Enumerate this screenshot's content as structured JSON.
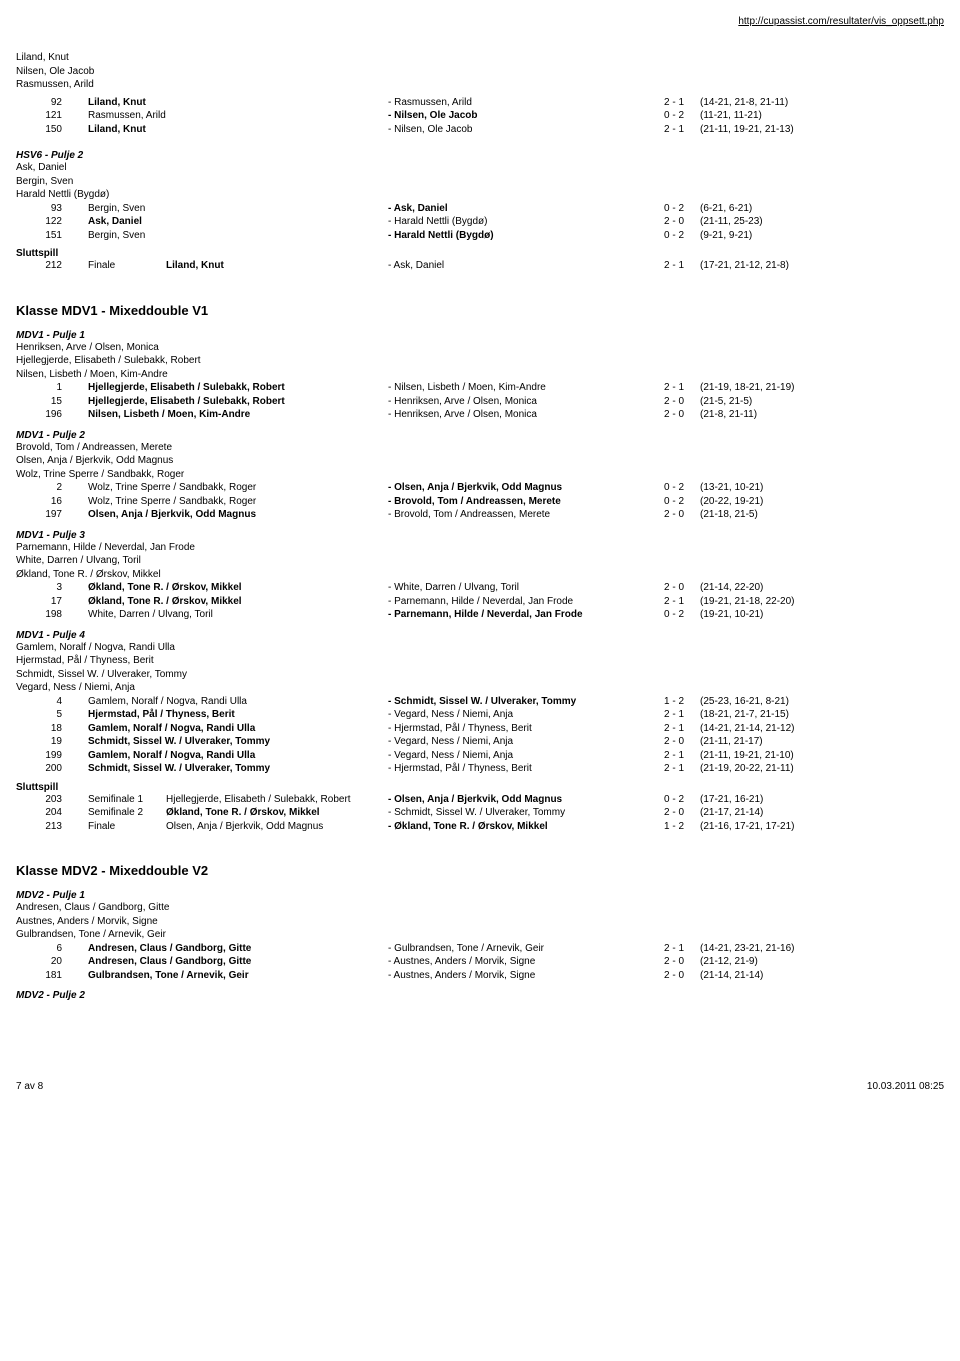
{
  "url": "http://cupassist.com/resultater/vis_oppsett.php",
  "topNames": [
    "Liland, Knut",
    "Nilsen, Ole Jacob",
    "Rasmussen, Arild"
  ],
  "topMatches": [
    {
      "n": "92",
      "left": "Liland, Knut",
      "lb": true,
      "vs": "- Rasmussen, Arild",
      "score": "2 - 1",
      "sets": "(14-21, 21-8, 21-11)"
    },
    {
      "n": "121",
      "left": "Rasmussen, Arild",
      "lb": false,
      "vs": "- Nilsen, Ole Jacob",
      "vb": true,
      "score": "0 - 2",
      "sets": "(11-21, 11-21)"
    },
    {
      "n": "150",
      "left": "Liland, Knut",
      "lb": true,
      "vs": "- Nilsen, Ole Jacob",
      "score": "2 - 1",
      "sets": "(21-11, 19-21, 21-13)"
    }
  ],
  "hsv6": {
    "title": "HSV6 - Pulje 2",
    "players": [
      "Ask, Daniel",
      "Bergin, Sven",
      "Harald Nettli (Bygdø)"
    ],
    "rows": [
      {
        "n": "93",
        "left": "Bergin, Sven",
        "vs": "- Ask, Daniel",
        "vb": true,
        "score": "0 - 2",
        "sets": "(6-21, 6-21)"
      },
      {
        "n": "122",
        "left": "Ask, Daniel",
        "lb": true,
        "vs": "- Harald Nettli (Bygdø)",
        "score": "2 - 0",
        "sets": "(21-11, 25-23)"
      },
      {
        "n": "151",
        "left": "Bergin, Sven",
        "vs": "- Harald Nettli (Bygdø)",
        "vb": true,
        "score": "0 - 2",
        "sets": "(9-21, 9-21)"
      }
    ]
  },
  "slutt1": {
    "title": "Sluttspill",
    "rows": [
      {
        "n": "212",
        "round": "Finale",
        "left": "Liland, Knut",
        "lb": true,
        "vs": "- Ask, Daniel",
        "score": "2 - 1",
        "sets": "(17-21, 21-12, 21-8)"
      }
    ]
  },
  "klasse1": "Klasse MDV1 - Mixeddouble V1",
  "mdv1p1": {
    "title": "MDV1 - Pulje 1",
    "players": [
      "Henriksen, Arve / Olsen, Monica",
      "Hjellegjerde, Elisabeth / Sulebakk, Robert",
      "Nilsen, Lisbeth / Moen, Kim-Andre"
    ],
    "rows": [
      {
        "n": "1",
        "left": "Hjellegjerde, Elisabeth / Sulebakk, Robert",
        "lb": true,
        "vs": "- Nilsen, Lisbeth / Moen, Kim-Andre",
        "score": "2 - 1",
        "sets": "(21-19, 18-21, 21-19)"
      },
      {
        "n": "15",
        "left": "Hjellegjerde, Elisabeth / Sulebakk, Robert",
        "lb": true,
        "vs": "- Henriksen, Arve / Olsen, Monica",
        "score": "2 - 0",
        "sets": "(21-5, 21-5)"
      },
      {
        "n": "196",
        "left": "Nilsen, Lisbeth / Moen, Kim-Andre",
        "lb": true,
        "vs": "- Henriksen, Arve / Olsen, Monica",
        "score": "2 - 0",
        "sets": "(21-8, 21-11)"
      }
    ]
  },
  "mdv1p2": {
    "title": "MDV1 - Pulje 2",
    "players": [
      "Brovold, Tom / Andreassen, Merete",
      "Olsen, Anja / Bjerkvik, Odd Magnus",
      "Wolz, Trine Sperre / Sandbakk, Roger"
    ],
    "rows": [
      {
        "n": "2",
        "left": "Wolz, Trine Sperre / Sandbakk, Roger",
        "vs": "- Olsen, Anja / Bjerkvik, Odd Magnus",
        "vb": true,
        "score": "0 - 2",
        "sets": "(13-21, 10-21)"
      },
      {
        "n": "16",
        "left": "Wolz, Trine Sperre / Sandbakk, Roger",
        "vs": "- Brovold, Tom / Andreassen, Merete",
        "vb": true,
        "score": "0 - 2",
        "sets": "(20-22, 19-21)"
      },
      {
        "n": "197",
        "left": "Olsen, Anja / Bjerkvik, Odd Magnus",
        "lb": true,
        "vs": "- Brovold, Tom / Andreassen, Merete",
        "score": "2 - 0",
        "sets": "(21-18, 21-5)"
      }
    ]
  },
  "mdv1p3": {
    "title": "MDV1 - Pulje 3",
    "players": [
      "Parnemann, Hilde / Neverdal, Jan Frode",
      "White, Darren / Ulvang, Toril",
      "Økland, Tone R. / Ørskov, Mikkel"
    ],
    "rows": [
      {
        "n": "3",
        "left": "Økland, Tone R. / Ørskov, Mikkel",
        "lb": true,
        "vs": "- White, Darren / Ulvang, Toril",
        "score": "2 - 0",
        "sets": "(21-14, 22-20)"
      },
      {
        "n": "17",
        "left": "Økland, Tone R. / Ørskov, Mikkel",
        "lb": true,
        "vs": "- Parnemann, Hilde / Neverdal, Jan Frode",
        "score": "2 - 1",
        "sets": "(19-21, 21-18, 22-20)"
      },
      {
        "n": "198",
        "left": "White, Darren / Ulvang, Toril",
        "vs": "- Parnemann, Hilde / Neverdal, Jan Frode",
        "vb": true,
        "score": "0 - 2",
        "sets": "(19-21, 10-21)"
      }
    ]
  },
  "mdv1p4": {
    "title": "MDV1 - Pulje 4",
    "players": [
      "Gamlem, Noralf / Nogva, Randi Ulla",
      "Hjermstad, Pål / Thyness, Berit",
      "Schmidt, Sissel W. / Ulveraker, Tommy",
      "Vegard, Ness / Niemi, Anja"
    ],
    "rows": [
      {
        "n": "4",
        "left": "Gamlem, Noralf / Nogva, Randi Ulla",
        "vs": "- Schmidt, Sissel W. / Ulveraker, Tommy",
        "vb": true,
        "score": "1 - 2",
        "sets": "(25-23, 16-21, 8-21)"
      },
      {
        "n": "5",
        "left": "Hjermstad, Pål / Thyness, Berit",
        "lb": true,
        "vs": "- Vegard, Ness / Niemi, Anja",
        "score": "2 - 1",
        "sets": "(18-21, 21-7, 21-15)"
      },
      {
        "n": "18",
        "left": "Gamlem, Noralf / Nogva, Randi Ulla",
        "lb": true,
        "vs": "- Hjermstad, Pål / Thyness, Berit",
        "score": "2 - 1",
        "sets": "(14-21, 21-14, 21-12)"
      },
      {
        "n": "19",
        "left": "Schmidt, Sissel W. / Ulveraker, Tommy",
        "lb": true,
        "vs": "- Vegard, Ness / Niemi, Anja",
        "score": "2 - 0",
        "sets": "(21-11, 21-17)"
      },
      {
        "n": "199",
        "left": "Gamlem, Noralf / Nogva, Randi Ulla",
        "lb": true,
        "vs": "- Vegard, Ness / Niemi, Anja",
        "score": "2 - 1",
        "sets": "(21-11, 19-21, 21-10)"
      },
      {
        "n": "200",
        "left": "Schmidt, Sissel W. / Ulveraker, Tommy",
        "lb": true,
        "vs": "- Hjermstad, Pål / Thyness, Berit",
        "score": "2 - 1",
        "sets": "(21-19, 20-22, 21-11)"
      }
    ]
  },
  "slutt2": {
    "title": "Sluttspill",
    "rows": [
      {
        "n": "203",
        "round": "Semifinale 1",
        "left": "Hjellegjerde, Elisabeth / Sulebakk, Robert",
        "vs": "- Olsen, Anja / Bjerkvik, Odd Magnus",
        "vb": true,
        "score": "0 - 2",
        "sets": "(17-21, 16-21)"
      },
      {
        "n": "204",
        "round": "Semifinale 2",
        "left": "Økland, Tone R. / Ørskov, Mikkel",
        "lb": true,
        "vs": "- Schmidt, Sissel W. / Ulveraker, Tommy",
        "score": "2 - 0",
        "sets": "(21-17, 21-14)"
      },
      {
        "n": "213",
        "round": "Finale",
        "left": "Olsen, Anja / Bjerkvik, Odd Magnus",
        "vs": "- Økland, Tone R. / Ørskov, Mikkel",
        "vb": true,
        "score": "1 - 2",
        "sets": "(21-16, 17-21, 17-21)"
      }
    ]
  },
  "klasse2": "Klasse MDV2 - Mixeddouble V2",
  "mdv2p1": {
    "title": "MDV2 - Pulje 1",
    "players": [
      "Andresen, Claus / Gandborg, Gitte",
      "Austnes, Anders / Morvik, Signe",
      "Gulbrandsen, Tone / Arnevik, Geir"
    ],
    "rows": [
      {
        "n": "6",
        "left": "Andresen, Claus / Gandborg, Gitte",
        "lb": true,
        "vs": "- Gulbrandsen, Tone / Arnevik, Geir",
        "score": "2 - 1",
        "sets": "(14-21, 23-21, 21-16)"
      },
      {
        "n": "20",
        "left": "Andresen, Claus / Gandborg, Gitte",
        "lb": true,
        "vs": "- Austnes, Anders / Morvik, Signe",
        "score": "2 - 0",
        "sets": "(21-12, 21-9)"
      },
      {
        "n": "181",
        "left": "Gulbrandsen, Tone / Arnevik, Geir",
        "lb": true,
        "vs": "- Austnes, Anders / Morvik, Signe",
        "score": "2 - 0",
        "sets": "(21-14, 21-14)"
      }
    ]
  },
  "mdv2p2": {
    "title": "MDV2 - Pulje 2"
  },
  "footer": {
    "page": "7 av 8",
    "date": "10.03.2011 08:25"
  }
}
